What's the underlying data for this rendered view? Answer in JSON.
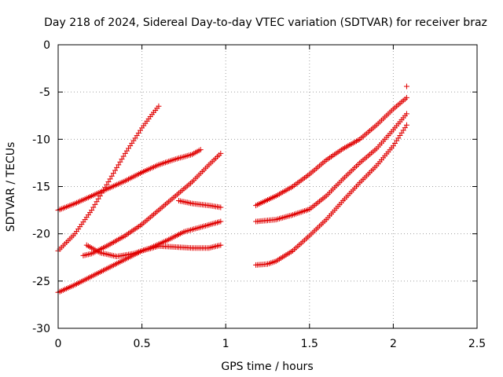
{
  "chart_data": {
    "type": "scatter",
    "title": "Day 218 of 2024, Sidereal Day-to-day VTEC variation (SDTVAR) for receiver braz",
    "xlabel": "GPS time / hours",
    "ylabel": "SDTVAR / TECUs",
    "xlim": [
      0,
      2.5
    ],
    "ylim": [
      -30,
      0
    ],
    "xticks": [
      0,
      0.5,
      1,
      1.5,
      2,
      2.5
    ],
    "xtick_labels": [
      "0",
      "0.5",
      "1",
      "1.5",
      "2",
      "2.5"
    ],
    "yticks": [
      0,
      -5,
      -10,
      -15,
      -20,
      -25,
      -30
    ],
    "ytick_labels": [
      "0",
      "-5",
      "-10",
      "-15",
      "-20",
      "-25",
      "-30"
    ],
    "grid": true,
    "marker": "+",
    "color": "#e00000",
    "series": [
      {
        "x": [
          0.0,
          0.1,
          0.2,
          0.3,
          0.4,
          0.5,
          0.6,
          0.7,
          0.8,
          0.85
        ],
        "y": [
          -17.5,
          -16.8,
          -16.0,
          -15.2,
          -14.4,
          -13.5,
          -12.7,
          -12.1,
          -11.6,
          -11.1
        ]
      },
      {
        "x": [
          0.0,
          0.1,
          0.2,
          0.3,
          0.4,
          0.5,
          0.55,
          0.6
        ],
        "y": [
          -21.8,
          -20.0,
          -17.5,
          -14.5,
          -11.5,
          -8.8,
          -7.6,
          -6.5
        ]
      },
      {
        "x": [
          0.0,
          0.1,
          0.2,
          0.3,
          0.4,
          0.5,
          0.6,
          0.7,
          0.8,
          0.9,
          0.97
        ],
        "y": [
          -26.2,
          -25.4,
          -24.5,
          -23.6,
          -22.7,
          -21.8,
          -21.3,
          -21.4,
          -21.5,
          -21.5,
          -21.2
        ]
      },
      {
        "x": [
          0.15,
          0.2,
          0.3,
          0.4,
          0.5,
          0.6,
          0.7,
          0.8,
          0.9,
          0.97
        ],
        "y": [
          -22.3,
          -22.1,
          -21.2,
          -20.2,
          -19.0,
          -17.5,
          -16.0,
          -14.5,
          -12.7,
          -11.5
        ]
      },
      {
        "x": [
          0.17,
          0.25,
          0.35,
          0.45,
          0.55,
          0.65,
          0.75,
          0.85,
          0.97
        ],
        "y": [
          -21.2,
          -22.0,
          -22.4,
          -22.1,
          -21.5,
          -20.7,
          -19.8,
          -19.3,
          -18.7
        ]
      },
      {
        "x": [
          0.72,
          0.8,
          0.9,
          0.97
        ],
        "y": [
          -16.5,
          -16.8,
          -17.0,
          -17.2
        ]
      },
      {
        "x": [
          1.18,
          1.3,
          1.4,
          1.5,
          1.6,
          1.7,
          1.8,
          1.9,
          2.0,
          2.08
        ],
        "y": [
          -17.0,
          -16.0,
          -15.0,
          -13.7,
          -12.2,
          -11.0,
          -10.0,
          -8.5,
          -6.8,
          -5.6
        ]
      },
      {
        "x": [
          2.08
        ],
        "y": [
          -4.4
        ]
      },
      {
        "x": [
          1.18,
          1.3,
          1.4,
          1.5,
          1.6,
          1.7,
          1.8,
          1.9,
          2.0,
          2.08
        ],
        "y": [
          -18.7,
          -18.5,
          -18.0,
          -17.4,
          -16.0,
          -14.2,
          -12.5,
          -11.0,
          -9.0,
          -7.3
        ]
      },
      {
        "x": [
          1.18,
          1.25,
          1.3,
          1.4,
          1.5,
          1.6,
          1.7,
          1.8,
          1.9,
          2.0,
          2.08
        ],
        "y": [
          -23.3,
          -23.2,
          -22.9,
          -21.8,
          -20.2,
          -18.5,
          -16.5,
          -14.6,
          -12.8,
          -10.7,
          -8.5
        ]
      }
    ]
  }
}
